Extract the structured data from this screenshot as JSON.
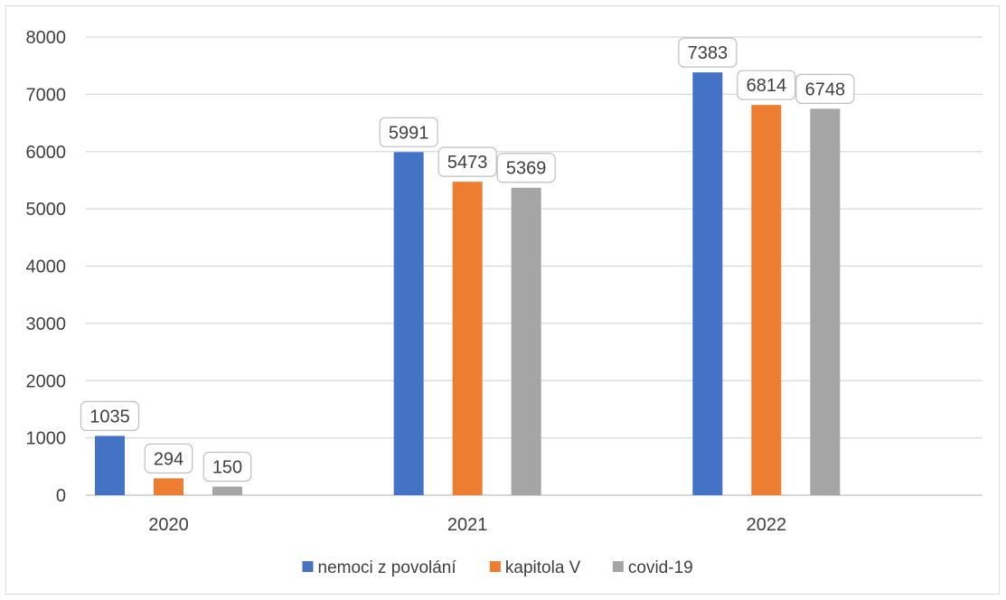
{
  "chart_data": {
    "type": "bar",
    "title": "",
    "xlabel": "",
    "ylabel": "",
    "categories": [
      "2020",
      "2021",
      "2022"
    ],
    "series": [
      {
        "name": "nemoci z povolání",
        "color": "#4472c4",
        "values": [
          1035,
          5991,
          7383
        ]
      },
      {
        "name": "kapitola V",
        "color": "#ed7d31",
        "values": [
          294,
          5473,
          6814
        ]
      },
      {
        "name": "covid-19",
        "color": "#a5a5a5",
        "values": [
          150,
          5369,
          6748
        ]
      }
    ],
    "ylim": [
      0,
      8000
    ],
    "yticks": [
      0,
      1000,
      2000,
      3000,
      4000,
      5000,
      6000,
      7000,
      8000
    ],
    "grid": true,
    "legend_position": "bottom",
    "data_labels": true
  }
}
